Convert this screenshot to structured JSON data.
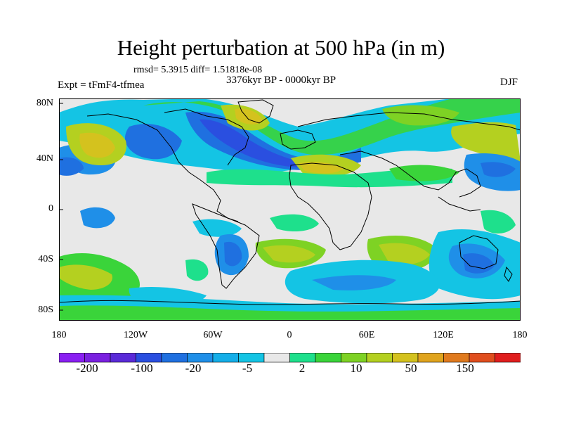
{
  "figure": {
    "title": "Height perturbation at 500 hPa (in m)",
    "stats": "rmsd= 5.3915 diff= 1.51818e-08",
    "period": "3376kyr BP - 0000kyr BP",
    "experiment": "Expt = tFmF4-tfmea",
    "season": "DJF"
  },
  "axes": {
    "y_labels": [
      "80N",
      "40N",
      "0",
      "40S",
      "80S"
    ],
    "x_labels": [
      "180",
      "120W",
      "60W",
      "0",
      "60E",
      "120E",
      "180"
    ]
  },
  "colorbar": {
    "labels": [
      "-200",
      "-100",
      "-20",
      "-5",
      "2",
      "10",
      "50",
      "150"
    ],
    "colors": [
      "#8a1ff2",
      "#7a20e0",
      "#5a2ad8",
      "#2a4fe0",
      "#1f70e0",
      "#1f8fe8",
      "#14aee8",
      "#14c4e4",
      "#e8e8e8",
      "#1ee08c",
      "#3ad43a",
      "#7ed224",
      "#b4d020",
      "#d4c21e",
      "#e0a41e",
      "#e07a1e",
      "#e04e1e",
      "#e01e1e"
    ]
  }
}
